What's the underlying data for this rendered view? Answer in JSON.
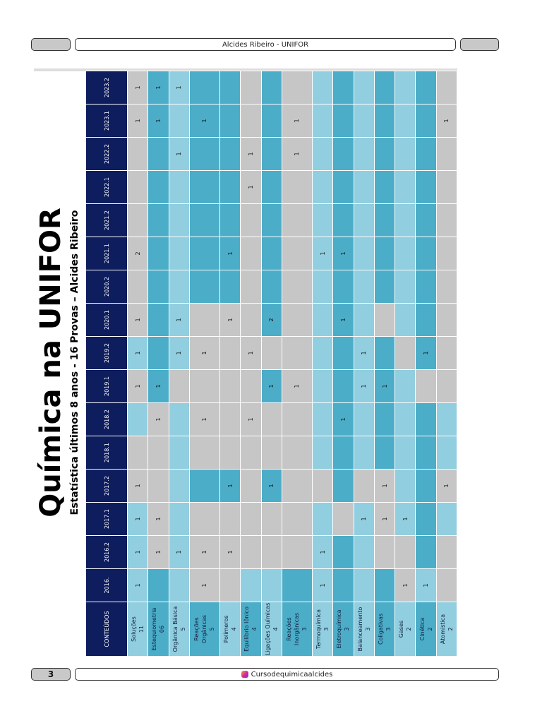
{
  "header": {
    "author": "Alcides Ribeiro - UNIFOR"
  },
  "footer": {
    "page_number": "3",
    "instagram": "Cursodequimicaalcides",
    "icon": "instagram-icon"
  },
  "document": {
    "title": "Química na UNIFOR",
    "subtitle": "Estatística últimos 8 anos  - 16 Provas – Alcides Ribeiro"
  },
  "table": {
    "corner_header": "CONTEÚDOS",
    "colors": {
      "header": "#0e1d5d",
      "grey": "#c6c6c6",
      "light": "#91cedf",
      "medium": "#4badc8"
    },
    "columns": [
      "2016.",
      "2016.2",
      "2017.1",
      "2017.2",
      "2018.1",
      "2018.2",
      "2019.1",
      "2019.2",
      "2020.1",
      "2020.2",
      "2021.1",
      "2021.2",
      "2022.1",
      "2022.2",
      "2023.1",
      "2023.2"
    ],
    "rows": [
      {
        "label": [
          "Soluções",
          "11"
        ],
        "colors": [
          1,
          1,
          1,
          0,
          0,
          1,
          0,
          1,
          0,
          0,
          0,
          0,
          0,
          0,
          0,
          0
        ],
        "values": [
          "1",
          "1",
          "1",
          "1",
          "",
          "",
          "1",
          "1",
          "1",
          "",
          "2",
          "",
          "",
          "",
          "1",
          "1"
        ]
      },
      {
        "label": [
          "Estequiometria",
          "06"
        ],
        "colors": [
          2,
          0,
          0,
          0,
          0,
          0,
          2,
          2,
          2,
          2,
          2,
          2,
          2,
          2,
          2,
          2
        ],
        "values": [
          "",
          "1",
          "1",
          "",
          "",
          "1",
          "1",
          "",
          "",
          "",
          "",
          "",
          "",
          "",
          "1",
          "1"
        ]
      },
      {
        "label": [
          "Orgânica Básica",
          "5"
        ],
        "colors": [
          1,
          1,
          1,
          1,
          1,
          1,
          0,
          1,
          1,
          1,
          1,
          1,
          1,
          1,
          1,
          1
        ],
        "values": [
          "",
          "1",
          "",
          "",
          "",
          "",
          "",
          "1",
          "1",
          "",
          "",
          "",
          "",
          "1",
          "",
          "1"
        ]
      },
      {
        "label": [
          "Reações",
          "Orgânicas",
          "5"
        ],
        "colors": [
          0,
          0,
          0,
          2,
          0,
          0,
          0,
          0,
          0,
          2,
          2,
          2,
          2,
          2,
          2,
          2
        ],
        "values": [
          "1",
          "1",
          "",
          "",
          "",
          "1",
          "",
          "1",
          "",
          "",
          "",
          "",
          "",
          "",
          "1",
          ""
        ]
      },
      {
        "label": [
          "Polímeros",
          "4"
        ],
        "colors": [
          0,
          0,
          0,
          2,
          0,
          0,
          0,
          0,
          0,
          2,
          2,
          2,
          2,
          2,
          2,
          2
        ],
        "values": [
          "",
          "1",
          "",
          "1",
          "",
          "",
          "",
          "",
          "1",
          "",
          "1",
          "",
          "",
          "",
          "",
          ""
        ]
      },
      {
        "label": [
          "Equilíbrio Iônico",
          "4"
        ],
        "colors": [
          1,
          0,
          0,
          0,
          0,
          0,
          0,
          0,
          0,
          0,
          0,
          0,
          0,
          0,
          0,
          0
        ],
        "values": [
          "",
          "",
          "",
          "",
          "",
          "1",
          "",
          "1",
          "",
          "",
          "",
          "",
          "1",
          "1",
          "",
          ""
        ]
      },
      {
        "label": [
          "Ligações Químicas",
          "4"
        ],
        "colors": [
          1,
          0,
          0,
          2,
          0,
          0,
          2,
          0,
          2,
          2,
          2,
          2,
          2,
          2,
          2,
          2
        ],
        "values": [
          "",
          "",
          "",
          "1",
          "",
          "",
          "1",
          "",
          "2",
          "",
          "",
          "",
          "",
          "",
          "",
          ""
        ]
      },
      {
        "label": [
          "Reações",
          "Inorgânicas",
          "3"
        ],
        "colors": [
          2,
          0,
          0,
          0,
          0,
          0,
          0,
          0,
          0,
          0,
          0,
          0,
          0,
          0,
          0,
          0
        ],
        "values": [
          "",
          "",
          "",
          "",
          "",
          "",
          "1",
          "",
          "",
          "",
          "",
          "",
          "",
          "1",
          "1",
          ""
        ]
      },
      {
        "label": [
          "Termoquímica",
          "3"
        ],
        "colors": [
          1,
          1,
          1,
          0,
          1,
          1,
          1,
          1,
          1,
          1,
          1,
          1,
          1,
          1,
          1,
          1
        ],
        "values": [
          "1",
          "1",
          "",
          "",
          "",
          "",
          "",
          "",
          "",
          "",
          "1",
          "",
          "",
          "",
          "",
          ""
        ]
      },
      {
        "label": [
          "Eletroquímica",
          "3"
        ],
        "colors": [
          2,
          2,
          0,
          2,
          2,
          2,
          2,
          2,
          2,
          2,
          2,
          2,
          2,
          2,
          2,
          2
        ],
        "values": [
          "",
          "",
          "",
          "",
          "",
          "1",
          "",
          "",
          "1",
          "",
          "1",
          "",
          "",
          "",
          "",
          ""
        ]
      },
      {
        "label": [
          "Balanceamento",
          "3"
        ],
        "colors": [
          1,
          1,
          1,
          0,
          1,
          1,
          1,
          1,
          1,
          1,
          1,
          1,
          1,
          1,
          1,
          1
        ],
        "values": [
          "",
          "",
          "1",
          "",
          "",
          "",
          "1",
          "1",
          "",
          "",
          "",
          "",
          "",
          "",
          "",
          ""
        ]
      },
      {
        "label": [
          "Coligativas",
          "3"
        ],
        "colors": [
          2,
          0,
          0,
          0,
          2,
          2,
          2,
          2,
          0,
          2,
          2,
          2,
          2,
          2,
          2,
          2
        ],
        "values": [
          "",
          "",
          "1",
          "1",
          "",
          "",
          "1",
          "",
          "",
          "",
          "",
          "",
          "",
          "",
          "",
          ""
        ]
      },
      {
        "label": [
          "Gases",
          "2"
        ],
        "colors": [
          0,
          0,
          1,
          1,
          1,
          1,
          1,
          0,
          1,
          1,
          1,
          1,
          1,
          1,
          1,
          1
        ],
        "values": [
          "1",
          "",
          "1",
          "",
          "",
          "",
          "",
          "",
          "",
          "",
          "",
          "",
          "",
          "",
          "",
          ""
        ]
      },
      {
        "label": [
          "Cinética",
          "2"
        ],
        "colors": [
          1,
          2,
          2,
          2,
          2,
          2,
          0,
          2,
          2,
          2,
          2,
          2,
          2,
          2,
          2,
          2
        ],
        "values": [
          "1",
          "",
          "",
          "",
          "",
          "",
          "",
          "1",
          "",
          "",
          "",
          "",
          "",
          "",
          "",
          ""
        ]
      },
      {
        "label": [
          "Atomística",
          "2"
        ],
        "colors": [
          0,
          0,
          1,
          0,
          1,
          1,
          0,
          0,
          0,
          0,
          0,
          0,
          0,
          0,
          0,
          0
        ],
        "values": [
          "",
          "",
          "",
          "1",
          "",
          "",
          "",
          "",
          "",
          "",
          "",
          "",
          "",
          "",
          "1",
          ""
        ]
      }
    ]
  }
}
